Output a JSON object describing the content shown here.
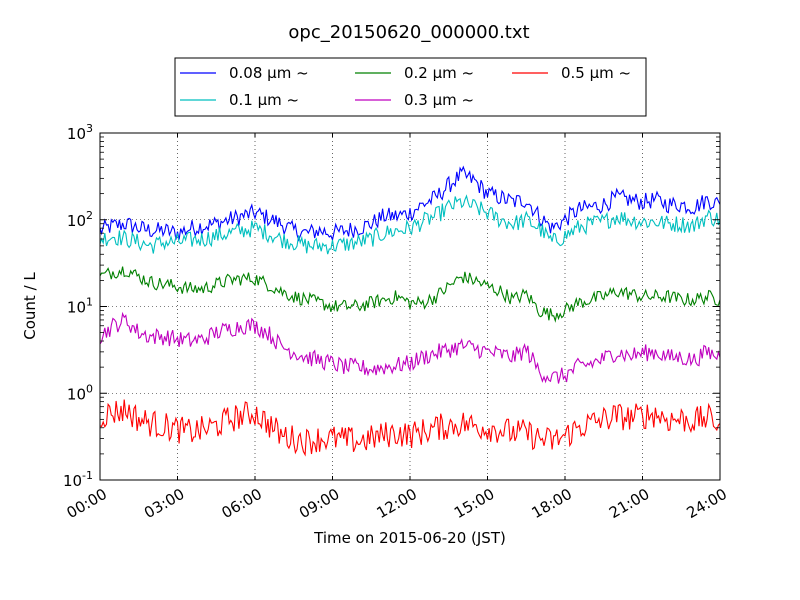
{
  "chart_data": {
    "type": "line",
    "title": "opc_20150620_000000.txt",
    "xlabel": "Time on 2015-06-20 (JST)",
    "ylabel": "Count / L",
    "x_range_hours": [
      0,
      24
    ],
    "yscale": "log",
    "ylim": [
      0.1,
      1000
    ],
    "grid": true,
    "legend_position": "top",
    "x_ticks": [
      {
        "h": 0,
        "label": "00:00"
      },
      {
        "h": 3,
        "label": "03:00"
      },
      {
        "h": 6,
        "label": "06:00"
      },
      {
        "h": 9,
        "label": "09:00"
      },
      {
        "h": 12,
        "label": "12:00"
      },
      {
        "h": 15,
        "label": "15:00"
      },
      {
        "h": 18,
        "label": "18:00"
      },
      {
        "h": 21,
        "label": "21:00"
      },
      {
        "h": 24,
        "label": "24:00"
      }
    ],
    "y_ticks": [
      {
        "v": 0.1,
        "base": "10",
        "exp": "-1"
      },
      {
        "v": 1,
        "base": "10",
        "exp": "0"
      },
      {
        "v": 10,
        "base": "10",
        "exp": "1"
      },
      {
        "v": 100,
        "base": "10",
        "exp": "2"
      },
      {
        "v": 1000,
        "base": "10",
        "exp": "3"
      }
    ],
    "series": [
      {
        "name": "0.08 μm ~",
        "color": "#0000ff",
        "noise": 0.1,
        "x": [
          0,
          0.5,
          1,
          1.5,
          2,
          2.5,
          3,
          3.5,
          4,
          4.5,
          5,
          5.5,
          6,
          6.5,
          7,
          7.5,
          8,
          8.5,
          9,
          9.5,
          10,
          10.5,
          11,
          11.5,
          12,
          12.5,
          13,
          13.5,
          14,
          14.5,
          15,
          15.5,
          16,
          16.5,
          17,
          17.5,
          18,
          18.5,
          19,
          19.5,
          20,
          20.5,
          21,
          21.5,
          22,
          22.5,
          23,
          23.5,
          24
        ],
        "y": [
          75,
          85,
          90,
          80,
          75,
          75,
          70,
          80,
          85,
          90,
          100,
          110,
          120,
          105,
          90,
          75,
          70,
          75,
          70,
          75,
          80,
          90,
          110,
          110,
          120,
          150,
          180,
          250,
          330,
          280,
          200,
          180,
          160,
          170,
          110,
          80,
          100,
          130,
          140,
          150,
          180,
          170,
          160,
          170,
          150,
          150,
          140,
          170,
          150
        ]
      },
      {
        "name": "0.1 μm ~",
        "color": "#00bfbf",
        "noise": 0.1,
        "x": [
          0,
          0.5,
          1,
          1.5,
          2,
          2.5,
          3,
          3.5,
          4,
          4.5,
          5,
          5.5,
          6,
          6.5,
          7,
          7.5,
          8,
          8.5,
          9,
          9.5,
          10,
          10.5,
          11,
          11.5,
          12,
          12.5,
          13,
          13.5,
          14,
          14.5,
          15,
          15.5,
          16,
          16.5,
          17,
          17.5,
          18,
          18.5,
          19,
          19.5,
          20,
          20.5,
          21,
          21.5,
          22,
          22.5,
          23,
          23.5,
          24
        ],
        "y": [
          60,
          65,
          60,
          55,
          50,
          55,
          55,
          58,
          60,
          65,
          70,
          75,
          80,
          70,
          60,
          55,
          50,
          50,
          50,
          52,
          55,
          60,
          70,
          75,
          80,
          95,
          110,
          140,
          160,
          140,
          120,
          100,
          90,
          100,
          80,
          55,
          65,
          80,
          90,
          95,
          110,
          100,
          95,
          95,
          90,
          90,
          85,
          110,
          100
        ]
      },
      {
        "name": "0.2 μm ~",
        "color": "#008000",
        "noise": 0.08,
        "x": [
          0,
          0.5,
          1,
          1.5,
          2,
          2.5,
          3,
          3.5,
          4,
          4.5,
          5,
          5.5,
          6,
          6.5,
          7,
          7.5,
          8,
          8.5,
          9,
          9.5,
          10,
          10.5,
          11,
          11.5,
          12,
          12.5,
          13,
          13.5,
          14,
          14.5,
          15,
          15.5,
          16,
          16.5,
          17,
          17.5,
          18,
          18.5,
          19,
          19.5,
          20,
          20.5,
          21,
          21.5,
          22,
          22.5,
          23,
          23.5,
          24
        ],
        "y": [
          22,
          25,
          27,
          22,
          19,
          18,
          17,
          16,
          16,
          18,
          20,
          21,
          21,
          18,
          15,
          13,
          12,
          11,
          10,
          10,
          10,
          11,
          12,
          13,
          11,
          11,
          13,
          17,
          22,
          20,
          17,
          15,
          12,
          14,
          9,
          8,
          9,
          11,
          12,
          13,
          15,
          14,
          13,
          13,
          13,
          12,
          12,
          13,
          12
        ]
      },
      {
        "name": "0.3 μm ~",
        "color": "#bf00bf",
        "noise": 0.1,
        "x": [
          0,
          0.5,
          1,
          1.5,
          2,
          2.5,
          3,
          3.5,
          4,
          4.5,
          5,
          5.5,
          6,
          6.5,
          7,
          7.5,
          8,
          8.5,
          9,
          9.5,
          10,
          10.5,
          11,
          11.5,
          12,
          12.5,
          13,
          13.5,
          14,
          14.5,
          15,
          15.5,
          16,
          16.5,
          17,
          17.5,
          18,
          18.5,
          19,
          19.5,
          20,
          20.5,
          21,
          21.5,
          22,
          22.5,
          23,
          23.5,
          24
        ],
        "y": [
          4.5,
          6,
          7,
          5,
          4.5,
          4.5,
          4.2,
          4,
          4.2,
          5,
          5.5,
          6,
          6,
          5,
          3.5,
          3,
          2.6,
          2.4,
          2.2,
          2,
          2,
          1.9,
          2,
          2.1,
          2.2,
          2.6,
          2.9,
          3.2,
          3.5,
          3.3,
          3,
          2.8,
          2.6,
          3.2,
          1.8,
          1.5,
          1.6,
          2,
          2.2,
          2.5,
          3,
          2.7,
          2.9,
          3,
          2.6,
          2.6,
          2.4,
          3,
          2.6
        ]
      },
      {
        "name": "0.5 μm ~",
        "color": "#ff0000",
        "noise": 0.16,
        "x": [
          0,
          0.5,
          1,
          1.5,
          2,
          2.5,
          3,
          3.5,
          4,
          4.5,
          5,
          5.5,
          6,
          6.5,
          7,
          7.5,
          8,
          8.5,
          9,
          9.5,
          10,
          10.5,
          11,
          11.5,
          12,
          12.5,
          13,
          13.5,
          14,
          14.5,
          15,
          15.5,
          16,
          16.5,
          17,
          17.5,
          18,
          18.5,
          19,
          19.5,
          20,
          20.5,
          21,
          21.5,
          22,
          22.5,
          23,
          23.5,
          24
        ],
        "y": [
          0.55,
          0.6,
          0.65,
          0.5,
          0.45,
          0.42,
          0.38,
          0.36,
          0.38,
          0.42,
          0.5,
          0.55,
          0.6,
          0.45,
          0.33,
          0.3,
          0.28,
          0.3,
          0.3,
          0.29,
          0.28,
          0.3,
          0.33,
          0.35,
          0.33,
          0.36,
          0.4,
          0.42,
          0.45,
          0.42,
          0.4,
          0.38,
          0.35,
          0.35,
          0.3,
          0.28,
          0.32,
          0.4,
          0.45,
          0.5,
          0.55,
          0.52,
          0.55,
          0.58,
          0.5,
          0.5,
          0.48,
          0.52,
          0.45
        ]
      }
    ]
  }
}
